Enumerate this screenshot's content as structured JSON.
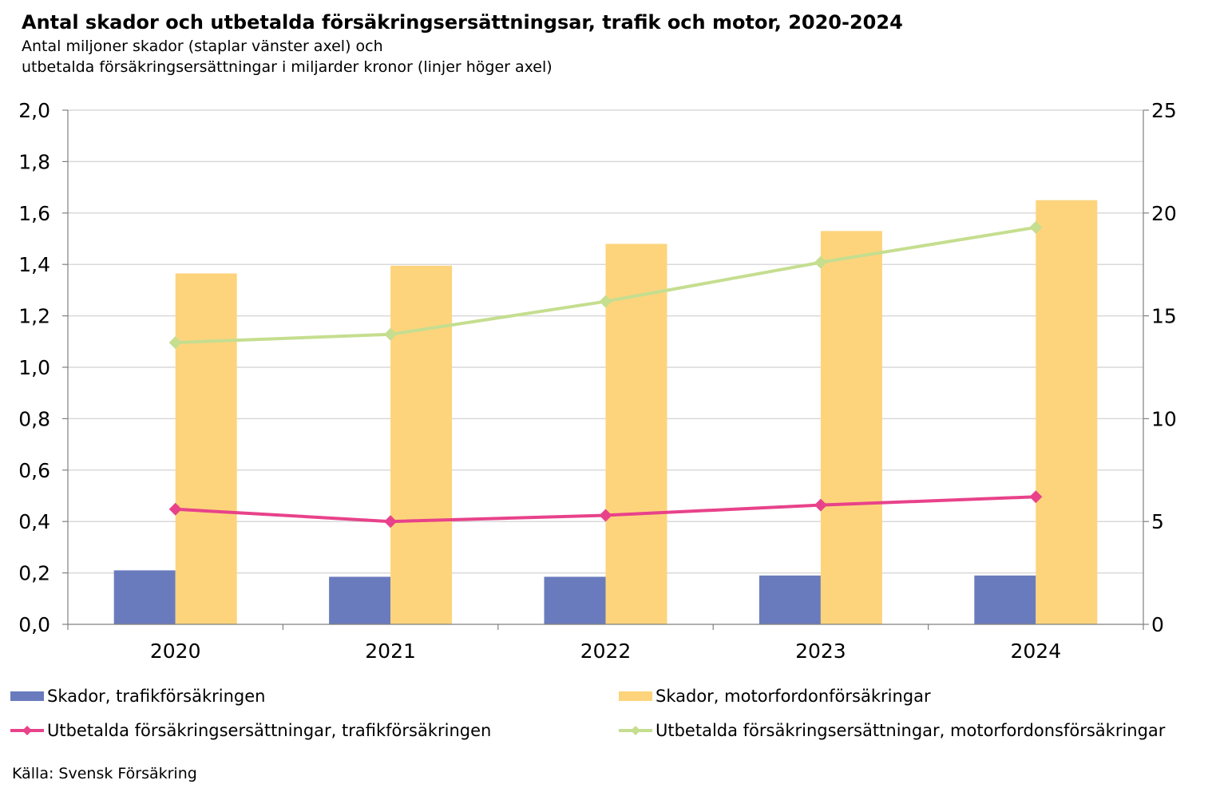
{
  "title": "Antal skador och utbetalda försäkringsersättningsar, trafik och motor, 2020-2024",
  "subtitle_line1": "Antal miljoner skador (staplar vänster axel) och",
  "subtitle_line2": "utbetalda försäkringsersättningar i miljarder kronor (linjer höger axel)",
  "source": "Källa: Svensk Försäkring",
  "chart_data": {
    "type": "bar",
    "categories": [
      "2020",
      "2021",
      "2022",
      "2023",
      "2024"
    ],
    "y_left": {
      "lim": [
        0,
        2
      ],
      "ticks": [
        "0,0",
        "0,2",
        "0,4",
        "0,6",
        "0,8",
        "1,0",
        "1,2",
        "1,4",
        "1,6",
        "1,8",
        "2,0"
      ]
    },
    "y_right": {
      "lim": [
        0,
        25
      ],
      "ticks": [
        "0",
        "5",
        "10",
        "15",
        "20",
        "25"
      ]
    },
    "grid": true,
    "legend_placement": "bottom",
    "series": [
      {
        "name": "Skador, trafikförsäkringen",
        "type": "bar",
        "axis": "left",
        "color": "#6a7bbd",
        "values": [
          0.21,
          0.185,
          0.185,
          0.19,
          0.19
        ]
      },
      {
        "name": "Skador, motorfordonförsäkringar",
        "type": "bar",
        "axis": "left",
        "color": "#fdd47c",
        "values": [
          1.365,
          1.395,
          1.48,
          1.53,
          1.65
        ]
      },
      {
        "name": "Utbetalda försäkringsersättningar, trafikförsäkringen",
        "type": "line",
        "axis": "right",
        "color": "#e8428a",
        "values": [
          5.6,
          5.0,
          5.3,
          5.8,
          6.2
        ]
      },
      {
        "name": "Utbetalda försäkringsersättningar, motorfordonsförsäkringar",
        "type": "line",
        "axis": "right",
        "color": "#c5de8f",
        "values": [
          13.7,
          14.1,
          15.7,
          17.6,
          19.3
        ]
      }
    ]
  }
}
